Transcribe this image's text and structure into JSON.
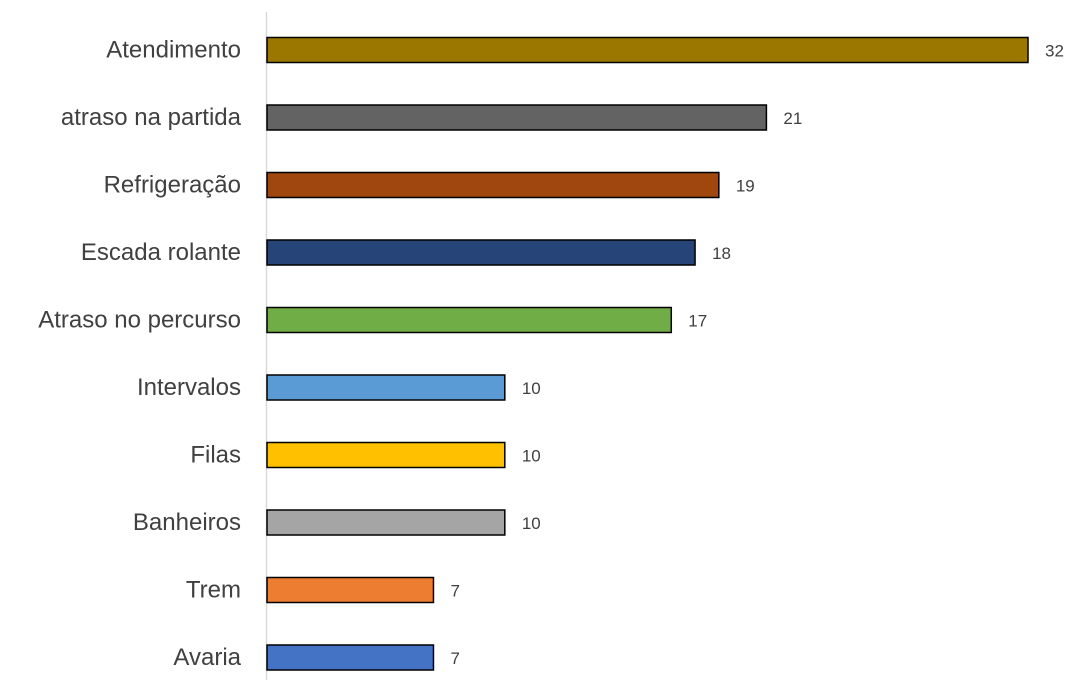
{
  "chart_data": {
    "type": "bar",
    "orientation": "horizontal",
    "title": "",
    "xlabel": "",
    "ylabel": "",
    "categories": [
      "Atendimento",
      "atraso na partida",
      "Refrigeração",
      "Escada rolante",
      "Atraso no percurso",
      "Intervalos",
      "Filas",
      "Banheiros",
      "Trem",
      "Avaria"
    ],
    "values": [
      32,
      21,
      19,
      18,
      17,
      10,
      10,
      10,
      7,
      7
    ],
    "colors": [
      "#9C7700",
      "#636363",
      "#A0460F",
      "#264478",
      "#70AD47",
      "#5B9BD5",
      "#FFC000",
      "#A5A5A5",
      "#ED7D31",
      "#4472C4"
    ],
    "bar_border_color": "#000000",
    "data_labels": true,
    "xlim": [
      0,
      32
    ],
    "grid": false,
    "legend": "none"
  }
}
